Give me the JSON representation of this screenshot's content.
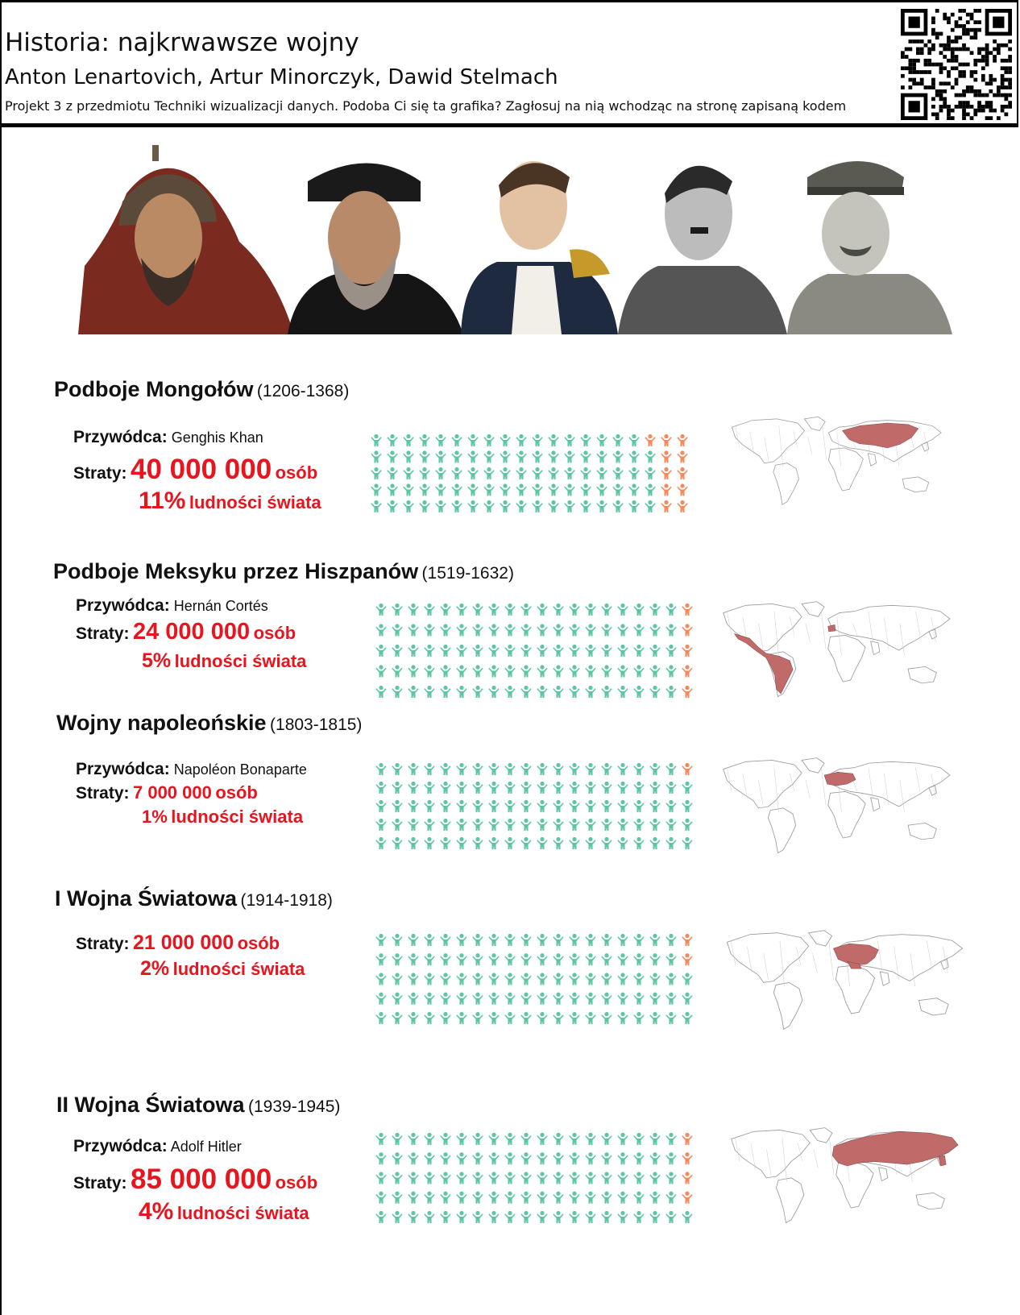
{
  "header": {
    "title": "Historia: najkrwawsze wojny",
    "authors": "Anton Lenartovich, Artur Minorczyk, Dawid Stelmach",
    "description": "Projekt 3 z przedmiotu Techniki wizualizacji danych. Podoba Ci się ta grafika? Zagłosuj na nią wchodząc na stronę zapisaną kodem"
  },
  "labels": {
    "leader": "Przywódca:",
    "losses": "Straty:",
    "people": "osób",
    "world_population": "ludności świata"
  },
  "colors": {
    "alive": "#5cc6a2",
    "dead": "#f48a5c",
    "region": "#c06a6a",
    "accent": "#e8141e"
  },
  "wars": [
    {
      "name": "Podboje Mongołów",
      "years": "(1206-1368)",
      "leader": "Genghis Khan",
      "losses": "40 000 000",
      "percent": "11%",
      "percent_value": 11,
      "region": "mongol"
    },
    {
      "name": "Podboje Meksyku przez Hiszpanów",
      "years": "(1519-1632)",
      "leader": "Hernán Cortés",
      "losses": "24 000 000",
      "percent": "5%",
      "percent_value": 5,
      "region": "spain"
    },
    {
      "name": "Wojny napoleońskie",
      "years": "(1803-1815)",
      "leader": "Napoléon Bonaparte",
      "losses": "7 000 000",
      "percent": "1%",
      "percent_value": 1,
      "region": "napoleon"
    },
    {
      "name": "I Wojna Światowa",
      "years": "(1914-1918)",
      "leader": "",
      "losses": "21 000 000",
      "percent": "2%",
      "percent_value": 2,
      "region": "ww1"
    },
    {
      "name": "II Wojna Światowa",
      "years": "(1939-1945)",
      "leader": "Adolf Hitler",
      "losses": "85 000 000",
      "percent": "4%",
      "percent_value": 4,
      "region": "ww2"
    }
  ],
  "portraits": [
    "Genghis Khan",
    "Hernán Cortés",
    "Napoléon Bonaparte",
    "Adolf Hitler",
    "Józef Stalin"
  ]
}
